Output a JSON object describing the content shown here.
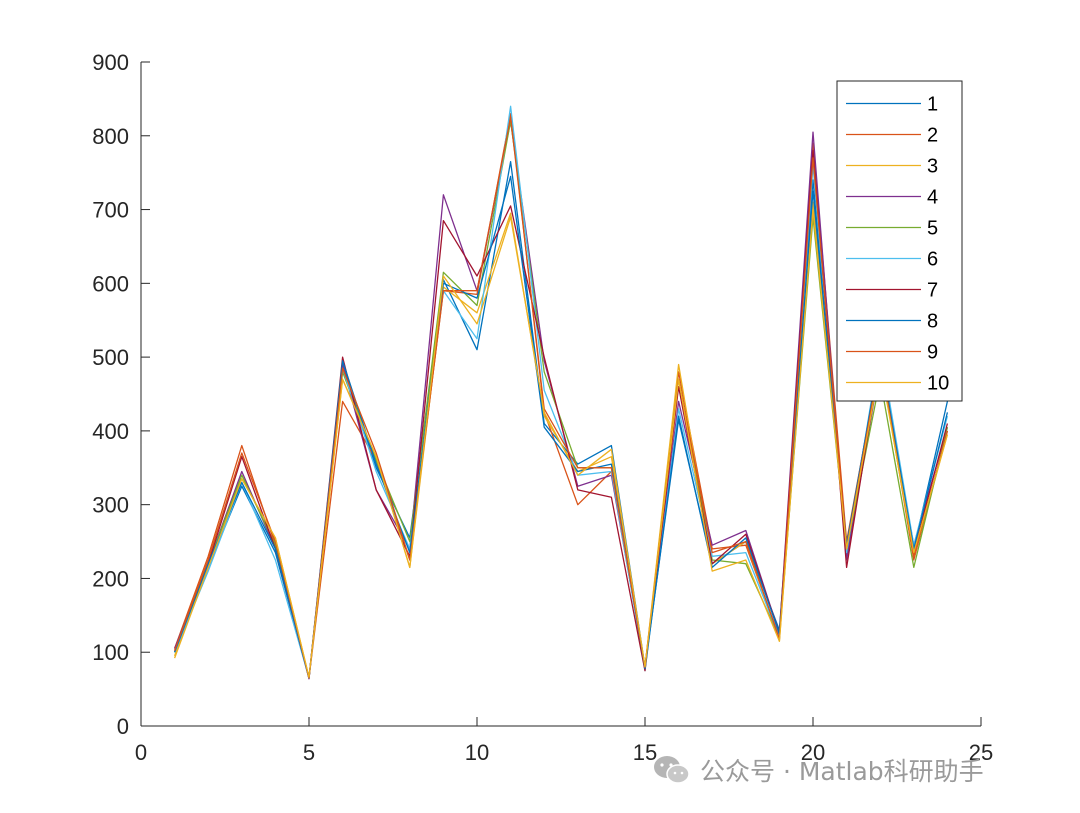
{
  "chart_data": {
    "type": "line",
    "title": "",
    "xlabel": "",
    "ylabel": "",
    "xlim": [
      0,
      25
    ],
    "ylim": [
      0,
      900
    ],
    "xticks": [
      0,
      5,
      10,
      15,
      20,
      25
    ],
    "yticks": [
      0,
      100,
      200,
      300,
      400,
      500,
      600,
      700,
      800,
      900
    ],
    "grid": false,
    "legend_position": "top-right",
    "x": [
      1,
      2,
      3,
      4,
      5,
      6,
      7,
      8,
      9,
      10,
      11,
      12,
      13,
      14,
      15,
      16,
      17,
      18,
      19,
      20,
      21,
      22,
      23,
      24
    ],
    "series": [
      {
        "name": "1",
        "color": "#0072BD",
        "values": [
          100,
          215,
          325,
          235,
          65,
          490,
          350,
          255,
          605,
          510,
          765,
          410,
          355,
          380,
          80,
          415,
          220,
          250,
          130,
          740,
          230,
          510,
          240,
          440
        ]
      },
      {
        "name": "2",
        "color": "#D95319",
        "values": [
          105,
          230,
          380,
          245,
          65,
          440,
          360,
          225,
          590,
          585,
          830,
          425,
          300,
          345,
          80,
          480,
          240,
          245,
          120,
          790,
          250,
          500,
          225,
          400
        ]
      },
      {
        "name": "3",
        "color": "#EDB120",
        "values": [
          95,
          220,
          335,
          255,
          66,
          470,
          365,
          215,
          595,
          560,
          695,
          420,
          345,
          365,
          80,
          490,
          220,
          250,
          115,
          710,
          240,
          495,
          230,
          395
        ]
      },
      {
        "name": "4",
        "color": "#7E2F8E",
        "values": [
          105,
          220,
          345,
          240,
          64,
          490,
          320,
          240,
          720,
          590,
          820,
          495,
          325,
          340,
          80,
          440,
          245,
          265,
          125,
          805,
          225,
          490,
          245,
          405
        ]
      },
      {
        "name": "5",
        "color": "#77AC30",
        "values": [
          100,
          220,
          340,
          245,
          65,
          480,
          360,
          250,
          615,
          570,
          820,
          480,
          350,
          350,
          78,
          470,
          225,
          220,
          120,
          690,
          240,
          470,
          215,
          405
        ]
      },
      {
        "name": "6",
        "color": "#4DBEEE",
        "values": [
          100,
          210,
          330,
          225,
          65,
          485,
          345,
          240,
          590,
          525,
          840,
          455,
          340,
          345,
          75,
          430,
          230,
          235,
          120,
          760,
          235,
          515,
          245,
          420
        ]
      },
      {
        "name": "7",
        "color": "#A2142F",
        "values": [
          102,
          220,
          365,
          240,
          65,
          500,
          320,
          230,
          685,
          610,
          705,
          500,
          320,
          310,
          75,
          460,
          220,
          260,
          125,
          780,
          215,
          500,
          235,
          410
        ]
      },
      {
        "name": "8",
        "color": "#0072BD",
        "values": [
          100,
          220,
          330,
          240,
          65,
          495,
          355,
          235,
          600,
          580,
          745,
          405,
          345,
          355,
          78,
          420,
          215,
          255,
          125,
          725,
          245,
          505,
          240,
          425
        ]
      },
      {
        "name": "9",
        "color": "#D95319",
        "values": [
          102,
          225,
          370,
          250,
          65,
          485,
          370,
          225,
          590,
          590,
          825,
          430,
          350,
          350,
          80,
          470,
          235,
          250,
          118,
          770,
          240,
          500,
          230,
          400
        ]
      },
      {
        "name": "10",
        "color": "#EDB120",
        "values": [
          92,
          215,
          335,
          255,
          66,
          470,
          365,
          215,
          610,
          545,
          690,
          425,
          340,
          375,
          80,
          470,
          210,
          225,
          115,
          700,
          240,
          490,
          235,
          395
        ]
      }
    ]
  },
  "watermark": {
    "text": "公众号 · Matlab科研助手",
    "icon": "wechat-icon"
  }
}
